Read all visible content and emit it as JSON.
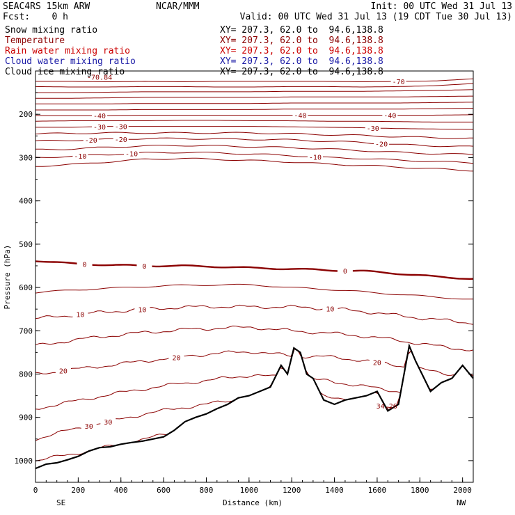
{
  "header": {
    "left_line1": "SEAC4RS 15km ARW",
    "left_line2": "Fcst:    0 h",
    "center": "NCAR/MMM",
    "right_line1": "Init: 00 UTC Wed 31 Jul 13",
    "right_line2": "Valid: 00 UTC Wed 31 Jul 13 (19 CDT Tue 30 Jul 13)"
  },
  "legend": [
    {
      "label": "Snow mixing ratio",
      "xy": "XY= 207.3, 62.0 to  94.6,138.8",
      "color": "#000000"
    },
    {
      "label": "Temperature",
      "xy": "XY= 207.3, 62.0 to  94.6,138.8",
      "color": "#8b0000"
    },
    {
      "label": "Rain water mixing ratio",
      "xy": "XY= 207.3, 62.0 to  94.6,138.8",
      "color": "#cc0000"
    },
    {
      "label": "Cloud water mixing ratio",
      "xy": "XY= 207.3, 62.0 to  94.6,138.8",
      "color": "#1a1aa6"
    },
    {
      "label": "Cloud ice mixing ratio",
      "xy": "XY= 207.3, 62.0 to  94.6,138.8",
      "color": "#000000"
    }
  ],
  "chart_data": {
    "type": "line",
    "xlabel": "Distance (km)",
    "ylabel": "Pressure (hPa)",
    "xlim": [
      0,
      2050
    ],
    "ylim": [
      1050,
      100
    ],
    "x_ticks": [
      0,
      200,
      400,
      600,
      800,
      1000,
      1200,
      1400,
      1600,
      1800,
      2000
    ],
    "y_ticks": [
      200,
      300,
      400,
      500,
      600,
      700,
      800,
      900,
      1000
    ],
    "y_tick_labels": [
      "200",
      "300",
      "400",
      "500",
      "600",
      "700",
      "800",
      "900",
      "1000"
    ],
    "x_end_labels": {
      "left": "SE",
      "right": "NW"
    },
    "colors": {
      "isotherm": "#8b0000",
      "terrain": "#000000"
    },
    "terrain": {
      "x": [
        0,
        50,
        100,
        150,
        200,
        250,
        300,
        350,
        400,
        450,
        500,
        550,
        600,
        650,
        700,
        750,
        800,
        850,
        900,
        950,
        1000,
        1050,
        1100,
        1150,
        1180,
        1210,
        1240,
        1270,
        1300,
        1350,
        1400,
        1450,
        1500,
        1550,
        1600,
        1650,
        1700,
        1750,
        1780,
        1810,
        1850,
        1900,
        1950,
        2000,
        2050
      ],
      "p": [
        1018,
        1008,
        1005,
        998,
        990,
        978,
        970,
        968,
        962,
        958,
        955,
        950,
        945,
        930,
        910,
        900,
        892,
        880,
        870,
        855,
        850,
        840,
        830,
        780,
        800,
        740,
        750,
        800,
        810,
        860,
        870,
        860,
        855,
        850,
        840,
        885,
        870,
        735,
        770,
        800,
        840,
        820,
        810,
        780,
        810
      ]
    },
    "isotherms": [
      {
        "t": -70,
        "label_x": [
          1700
        ],
        "p": [
          124,
          124,
          125,
          124,
          125,
          124,
          124,
          124,
          124,
          125,
          124,
          123,
          118
        ],
        "bold": false
      },
      {
        "t": -65,
        "label_x": [],
        "p": [
          136,
          137,
          137,
          136,
          136,
          137,
          137,
          136,
          136,
          137,
          136,
          134,
          129
        ],
        "bold": false
      },
      {
        "t": -60,
        "label_x": [],
        "p": [
          150,
          150,
          149,
          148,
          148,
          148,
          148,
          147,
          147,
          147,
          146,
          145,
          143
        ],
        "bold": false
      },
      {
        "t": -55,
        "label_x": [],
        "p": [
          163,
          163,
          162,
          161,
          161,
          161,
          161,
          160,
          160,
          160,
          160,
          159,
          158
        ],
        "bold": false
      },
      {
        "t": -50,
        "label_x": [],
        "p": [
          176,
          176,
          176,
          175,
          175,
          175,
          175,
          174,
          174,
          174,
          174,
          173,
          172
        ],
        "bold": false
      },
      {
        "t": -45,
        "label_x": [],
        "p": [
          190,
          190,
          190,
          189,
          189,
          189,
          189,
          188,
          188,
          188,
          188,
          187,
          186
        ],
        "bold": false
      },
      {
        "t": -40,
        "label_x": [
          300,
          1240,
          1660
        ],
        "p": [
          203,
          203,
          203,
          202,
          202,
          202,
          202,
          202,
          202,
          202,
          202,
          202,
          201
        ],
        "bold": false
      },
      {
        "t": -35,
        "label_x": [],
        "p": [
          216,
          215,
          215,
          215,
          214,
          214,
          215,
          215,
          216,
          216,
          217,
          218,
          218
        ],
        "bold": false
      },
      {
        "t": -30,
        "label_x": [
          300,
          400,
          1580
        ],
        "p": [
          230,
          230,
          228,
          228,
          228,
          228,
          228,
          229,
          230,
          231,
          233,
          234,
          235
        ],
        "bold": false
      },
      {
        "t": -25,
        "label_x": [],
        "p": [
          245,
          244,
          243,
          243,
          243,
          243,
          243,
          245,
          247,
          249,
          252,
          254,
          256
        ],
        "bold": false
      },
      {
        "t": -20,
        "label_x": [
          260,
          400,
          1620
        ],
        "p": [
          262,
          260,
          258,
          256,
          256,
          257,
          258,
          259,
          262,
          265,
          270,
          273,
          275
        ],
        "bold": false
      },
      {
        "t": -15,
        "label_x": [],
        "p": [
          282,
          280,
          276,
          273,
          272,
          273,
          275,
          277,
          280,
          284,
          288,
          291,
          293
        ],
        "bold": false
      },
      {
        "t": -10,
        "label_x": [
          210,
          450,
          1310
        ],
        "p": [
          300,
          297,
          293,
          289,
          288,
          289,
          292,
          295,
          300,
          302,
          306,
          309,
          312
        ],
        "bold": false
      },
      {
        "t": -5,
        "label_x": [],
        "p": [
          320,
          316,
          310,
          304,
          302,
          304,
          307,
          310,
          315,
          318,
          322,
          326,
          330
        ],
        "bold": false
      },
      {
        "t": 0,
        "label_x": [
          230,
          510,
          1450
        ],
        "p": [
          538,
          545,
          548,
          550,
          550,
          552,
          555,
          557,
          560,
          562,
          568,
          575,
          580
        ],
        "bold": true
      },
      {
        "t": 5,
        "label_x": [],
        "p": [
          612,
          606,
          602,
          598,
          595,
          594,
          594,
          600,
          604,
          610,
          616,
          622,
          628
        ],
        "bold": false
      },
      {
        "t": 10,
        "label_x": [
          210,
          500,
          1380
        ],
        "p": [
          672,
          664,
          656,
          650,
          646,
          644,
          645,
          645,
          648,
          655,
          665,
          674,
          682
        ],
        "bold": false
      },
      {
        "t": 15,
        "label_x": [],
        "p": [
          735,
          722,
          712,
          704,
          698,
          694,
          692,
          700,
          705,
          712,
          722,
          735,
          745
        ],
        "bold": false
      },
      {
        "t": 20,
        "label_x": [
          130,
          660,
          1600
        ],
        "p": [
          800,
          790,
          780,
          770,
          760,
          752,
          748,
          758,
          760,
          768,
          780,
          795,
          808
        ],
        "bold": false
      },
      {
        "t": 25,
        "label_x": [],
        "p": [
          880,
          864,
          848,
          834,
          822,
          812,
          802,
          810,
          815,
          828,
          840,
          855,
          868
        ],
        "bold": false
      },
      {
        "t": 30,
        "label_x": [
          250,
          340
        ],
        "p": [
          950,
          928,
          910,
          892,
          878,
          866,
          854,
          840,
          850,
          862,
          880,
          900,
          920
        ],
        "bold": false
      },
      {
        "t": 35,
        "label_x": [],
        "p": [
          1000,
          985,
          968,
          950,
          932,
          915,
          900,
          880,
          870,
          875,
          888,
          910,
          930
        ],
        "bold": false
      }
    ],
    "isotherm_x": [
      0,
      170,
      340,
      510,
      680,
      850,
      1020,
      1190,
      1360,
      1530,
      1700,
      1870,
      2050
    ],
    "annotations": [
      {
        "text": "34.26",
        "x": 1645,
        "p": 880
      },
      {
        "text": "-70.84",
        "x": 300,
        "p": 120
      }
    ]
  }
}
